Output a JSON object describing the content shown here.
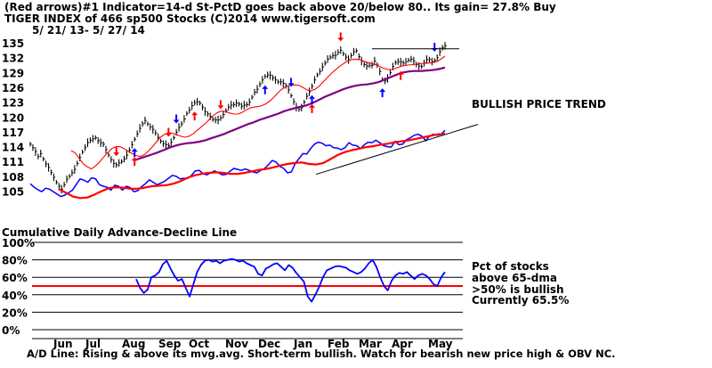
{
  "header": {
    "line1": "(Red arrows)#1 Indicator=14-d St-PctD goes back above 20/below 80.. Its gain= 27.8% Buy",
    "line2": "TIGER INDEX of  466 sp500 Stocks  (C)2014  www.tigersoft.com",
    "line3": "5/ 21/ 13- 5/ 27/ 14"
  },
  "annotation_trend": "BULLISH PRICE TREND",
  "ad_line_label": "Cumulative Daily Advance-Decline Line",
  "bottom_text": "A/D Line: Rising & above its mvg.avg. Short-term bullish. Watch for bearish new price high & OBV NC.",
  "pct_labels": {
    "l1": "Pct of stocks",
    "l2": "above 65-dma",
    "l3": ">50% is bullish",
    "l4": "Currently  65.5%"
  },
  "colors": {
    "price_bars": "#000000",
    "ma_short": "#ff0000",
    "ma_long": "#800080",
    "ad_line": "#0000ff",
    "ad_ma": "#ff0000",
    "pct_line": "#0000ff",
    "threshold": "#ff0000",
    "up_arrow_red": "#ff0000",
    "down_arrow_red": "#ff0000",
    "up_arrow_blue": "#0000ff",
    "down_arrow_blue": "#0000ff"
  },
  "chart_data": [
    {
      "type": "line",
      "title": "TIGER INDEX of  466 sp500 Stocks  (C)2014  www.tigersoft.com",
      "ylim": [
        102.5,
        136
      ],
      "y_ticks": [
        "135",
        "132",
        "129",
        "126",
        "123",
        "120",
        "117",
        "114",
        "111",
        "108",
        "105"
      ],
      "y_tick_values": [
        135,
        132,
        129,
        126,
        123,
        120,
        117,
        114,
        111,
        108,
        105
      ],
      "x_labels": [
        "Jun",
        "Jul",
        "Aug",
        "Sep",
        "Oct",
        "Nov",
        "Dec",
        "Jan",
        "Feb",
        "Mar",
        "Apr",
        "May"
      ],
      "series": [
        {
          "kind": "price_bars",
          "values": [
            114.5,
            113.8,
            113.0,
            112.0,
            112.6,
            111.5,
            110.5,
            109.8,
            108.8,
            107.8,
            106.8,
            106.0,
            105.4,
            106.3,
            107.4,
            108.0,
            108.7,
            109.4,
            110.6,
            111.8,
            112.9,
            113.8,
            114.8,
            115.3,
            115.6,
            115.8,
            115.2,
            114.8,
            114.5,
            113.4,
            112.3,
            111.4,
            110.6,
            110.3,
            110.7,
            111.0,
            111.5,
            112.3,
            113.3,
            114.4,
            115.5,
            116.6,
            117.7,
            118.6,
            119.3,
            118.6,
            118.0,
            117.5,
            116.8,
            115.9,
            115.1,
            114.6,
            114.4,
            114.2,
            114.9,
            115.8,
            116.9,
            117.9,
            118.6,
            119.6,
            120.7,
            121.4,
            122.3,
            122.9,
            123.1,
            122.8,
            122.0,
            121.1,
            120.6,
            120.1,
            119.5,
            119.4,
            119.4,
            119.8,
            120.5,
            121.3,
            122.0,
            122.4,
            122.5,
            122.8,
            122.6,
            122.2,
            122.4,
            122.5,
            123.0,
            124.0,
            125.0,
            125.6,
            126.6,
            127.5,
            128.2,
            128.5,
            128.4,
            127.9,
            127.5,
            127.1,
            127.1,
            126.8,
            126.3,
            125.5,
            124.3,
            123.1,
            122.0,
            121.6,
            121.9,
            123.0,
            124.2,
            125.1,
            126.2,
            127.5,
            128.5,
            129.2,
            130.1,
            130.9,
            131.7,
            132.1,
            132.4,
            132.5,
            133.1,
            133.5,
            132.8,
            132.1,
            131.6,
            132.4,
            133.2,
            133.4,
            132.2,
            131.3,
            130.6,
            130.3,
            130.4,
            130.5,
            131.3,
            130.5,
            129.2,
            127.6,
            127.3,
            127.8,
            129.0,
            130.2,
            131.0,
            131.2,
            131.1,
            130.9,
            131.2,
            131.5,
            131.7,
            131.3,
            130.6,
            130.3,
            130.2,
            130.9,
            131.6,
            131.6,
            131.2,
            131.4,
            132.0,
            133.2,
            134.0,
            134.4
          ]
        },
        {
          "name": "",
          "kind": "ma_short",
          "values": [
            113.2,
            112.7,
            111.6,
            110.5,
            109.9,
            109.5,
            110.1,
            110.9,
            111.9,
            112.8,
            113.6,
            114.0,
            114.0,
            113.6,
            113.1,
            112.6,
            112.2,
            112.0,
            112.4,
            113.1,
            114.0,
            115.0,
            115.9,
            116.5,
            116.8,
            116.7,
            116.4,
            116.1,
            115.9,
            116.1,
            116.6,
            117.3,
            118.0,
            118.7,
            119.5,
            120.3,
            120.9,
            121.2,
            121.1,
            120.8,
            120.6,
            120.6,
            120.9,
            121.4,
            121.8,
            122.0,
            122.1,
            122.3,
            122.7,
            123.3,
            124.1,
            125.0,
            125.7,
            126.2,
            126.4,
            126.5,
            126.4,
            126.0,
            125.5,
            125.3,
            125.6,
            126.2,
            127.1,
            127.9,
            128.8,
            129.5,
            130.2,
            130.8,
            131.3,
            131.6,
            131.7,
            131.6,
            131.3,
            131.0,
            130.8,
            130.6,
            130.2,
            129.8,
            129.6,
            129.6,
            129.9,
            130.2,
            130.4,
            130.5,
            130.6,
            130.7,
            130.8,
            130.9,
            130.9,
            131.0,
            131.2,
            131.7,
            132.3
          ]
        },
        {
          "name": "",
          "kind": "ma_long",
          "values": [
            111.2,
            111.6,
            112.0,
            112.4,
            112.8,
            113.3,
            113.8,
            114.2,
            114.5,
            114.7,
            114.8,
            115.0,
            115.3,
            115.7,
            116.1,
            116.5,
            117.0,
            117.5,
            118.0,
            118.5,
            118.9,
            119.4,
            119.8,
            120.2,
            120.6,
            121.1,
            121.5,
            121.8,
            122.1,
            122.4,
            122.9,
            123.5,
            124.1,
            124.6,
            125.1,
            125.6,
            126.0,
            126.3,
            126.5,
            126.6,
            126.8,
            127.1,
            127.6,
            128.1,
            128.6,
            129.0,
            129.2,
            129.3,
            129.3,
            129.4,
            129.5,
            129.7,
            130.0
          ]
        },
        {
          "name": "",
          "kind": "ad_line",
          "values": [
            106.5,
            105.8,
            105.3,
            104.9,
            105.6,
            105.4,
            104.9,
            104.4,
            103.9,
            104.2,
            104.7,
            105.2,
            106.4,
            107.5,
            107.2,
            106.8,
            107.7,
            107.5,
            106.3,
            106.0,
            105.8,
            105.2,
            106.2,
            106.0,
            105.2,
            106.0,
            105.7,
            104.9,
            105.1,
            105.9,
            106.5,
            107.3,
            106.8,
            106.3,
            106.6,
            107.0,
            107.6,
            108.2,
            108.0,
            107.5,
            107.6,
            107.6,
            108.2,
            109.1,
            109.2,
            108.5,
            108.3,
            108.7,
            109.1,
            108.7,
            108.3,
            108.4,
            109.0,
            109.6,
            109.4,
            109.2,
            109.5,
            109.2,
            108.9,
            108.7,
            109.2,
            109.6,
            110.3,
            111.2,
            110.9,
            110.0,
            109.6,
            108.7,
            108.9,
            110.6,
            111.6,
            112.6,
            112.5,
            113.6,
            114.5,
            114.9,
            114.7,
            114.2,
            114.3,
            113.8,
            113.7,
            113.4,
            113.8,
            114.8,
            114.3,
            114.2,
            113.6,
            114.4,
            114.9,
            114.8,
            115.3,
            114.8,
            114.2,
            114.0,
            113.9,
            115.1,
            114.4,
            114.5,
            115.4,
            115.8,
            116.3,
            116.5,
            116.1,
            115.2,
            116.2,
            116.5,
            116.3,
            116.5,
            117.3
          ]
        },
        {
          "name": "",
          "kind": "ad_ma",
          "values": [
            105.4,
            104.7,
            103.9,
            103.6,
            103.7,
            104.3,
            105.0,
            105.6,
            105.8,
            105.7,
            105.5,
            105.5,
            105.7,
            106.0,
            106.1,
            106.2,
            106.5,
            107.0,
            107.7,
            108.2,
            108.5,
            108.7,
            108.8,
            108.7,
            108.5,
            108.5,
            108.7,
            109.0,
            109.3,
            109.5,
            109.8,
            110.2,
            110.5,
            110.7,
            110.8,
            110.5,
            110.4,
            110.7,
            111.5,
            112.3,
            112.9,
            113.3,
            113.6,
            113.9,
            114.1,
            114.4,
            114.6,
            114.9,
            115.1,
            115.3,
            115.6,
            115.9,
            116.2,
            116.5,
            116.6
          ]
        },
        {
          "name": "",
          "kind": "trendline",
          "values": [
            108.4,
            118.5
          ]
        }
      ],
      "signals": [
        {
          "direction": "down",
          "color": "red",
          "index": 33
        },
        {
          "direction": "up",
          "color": "blue",
          "index": 40
        },
        {
          "direction": "up",
          "color": "red",
          "index": 40
        },
        {
          "direction": "down",
          "color": "red",
          "index": 53
        },
        {
          "direction": "down",
          "color": "blue",
          "index": 56
        },
        {
          "direction": "up",
          "color": "red",
          "index": 63
        },
        {
          "direction": "down",
          "color": "red",
          "index": 73
        },
        {
          "direction": "up",
          "color": "blue",
          "index": 90
        },
        {
          "direction": "down",
          "color": "blue",
          "index": 100
        },
        {
          "direction": "up",
          "color": "red",
          "index": 108
        },
        {
          "direction": "up",
          "color": "blue",
          "index": 108
        },
        {
          "direction": "down",
          "color": "red",
          "index": 119
        },
        {
          "direction": "up",
          "color": "blue",
          "index": 135
        },
        {
          "direction": "up",
          "color": "red",
          "index": 142
        },
        {
          "direction": "down",
          "color": "blue",
          "index": 155
        }
      ],
      "resistance": 133.8
    },
    {
      "type": "line",
      "ylim": [
        0,
        100
      ],
      "y_ticks": [
        "100%",
        "80%",
        "60%",
        "40%",
        "20%",
        "0%"
      ],
      "y_tick_values": [
        100,
        80,
        60,
        40,
        20,
        0
      ],
      "x_labels": [
        "Jun",
        "Jul",
        "Aug",
        "Sep",
        "Oct",
        "Nov",
        "Dec",
        "Jan",
        "Feb",
        "Mar",
        "Apr",
        "May"
      ],
      "threshold": 50,
      "current": 65.5,
      "series": [
        {
          "name": "Pct of stocks above 65-dma",
          "values": [
            58,
            48,
            42,
            46,
            60,
            62,
            66,
            75,
            79,
            70,
            62,
            56,
            58,
            48,
            38,
            52,
            66,
            74,
            79,
            80,
            78,
            79,
            76,
            79,
            80,
            81,
            80,
            78,
            79,
            76,
            74,
            72,
            64,
            62,
            70,
            72,
            75,
            76,
            72,
            68,
            74,
            71,
            65,
            60,
            55,
            38,
            32,
            40,
            49,
            60,
            68,
            70,
            72,
            73,
            72,
            71,
            68,
            66,
            64,
            66,
            70,
            76,
            80,
            72,
            60,
            50,
            45,
            56,
            62,
            65,
            64,
            66,
            62,
            58,
            62,
            64,
            62,
            58,
            52,
            50,
            60,
            66
          ]
        }
      ]
    }
  ]
}
